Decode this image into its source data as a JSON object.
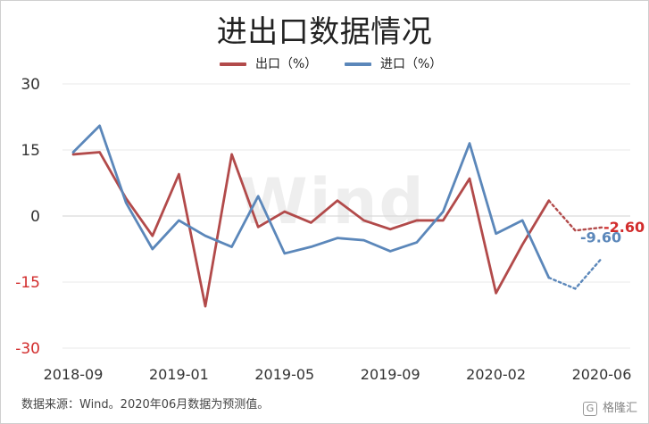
{
  "colors": {
    "export": "#b24a4a",
    "import": "#5b87ba",
    "axis_text": "#333333",
    "negative_tick": "#d22c2c",
    "gridline": "#e8e8e8",
    "zero_line": "#d9d9d9",
    "source_text": "#444444",
    "watermark": "#eeeeee"
  },
  "title": "进出口数据情况",
  "legend": [
    {
      "name": "出口（%）",
      "color": "#b24a4a"
    },
    {
      "name": "进口（%）",
      "color": "#5b87ba"
    }
  ],
  "source": "数据来源：Wind。2020年06月数据为预测值。",
  "watermark": "Wind",
  "brand": {
    "icon_label": "G",
    "text": "格隆汇"
  },
  "chart_data": {
    "type": "line",
    "title": "进出口数据情况",
    "x_tick_labels": [
      "2018-09",
      "2019-01",
      "2019-05",
      "2019-09",
      "2020-02",
      "2020-06"
    ],
    "x_labels": [
      "2018-09",
      "2018-10",
      "2018-11",
      "2018-12",
      "2019-01",
      "2019-02",
      "2019-03",
      "2019-04",
      "2019-05",
      "2019-06",
      "2019-07",
      "2019-08",
      "2019-09",
      "2019-10",
      "2019-11",
      "2019-12",
      "2020-02",
      "2020-03",
      "2020-04",
      "2020-05",
      "2020-06"
    ],
    "ylim": [
      -30,
      30
    ],
    "yticks": [
      -30,
      -15,
      0,
      15,
      30
    ],
    "grid": true,
    "legend_position": "top-center",
    "forecast_from_index": 19,
    "series": [
      {
        "name": "出口（%）",
        "color": "#b24a4a",
        "values": [
          14.0,
          14.5,
          4.0,
          -4.5,
          9.5,
          -20.5,
          14.0,
          -2.5,
          1.0,
          -1.5,
          3.5,
          -1.0,
          -3.0,
          -1.0,
          -1.0,
          8.5,
          -17.5,
          -6.5,
          3.5,
          -3.3,
          -2.6
        ],
        "forecast_label": "-2.60"
      },
      {
        "name": "进口（%）",
        "color": "#5b87ba",
        "values": [
          14.5,
          20.5,
          3.0,
          -7.5,
          -1.0,
          -4.5,
          -7.0,
          4.5,
          -8.5,
          -7.0,
          -5.0,
          -5.5,
          -8.0,
          -6.0,
          1.0,
          16.5,
          -4.0,
          -1.0,
          -14.0,
          -16.5,
          -9.6
        ],
        "forecast_label": "-9.60"
      }
    ]
  }
}
